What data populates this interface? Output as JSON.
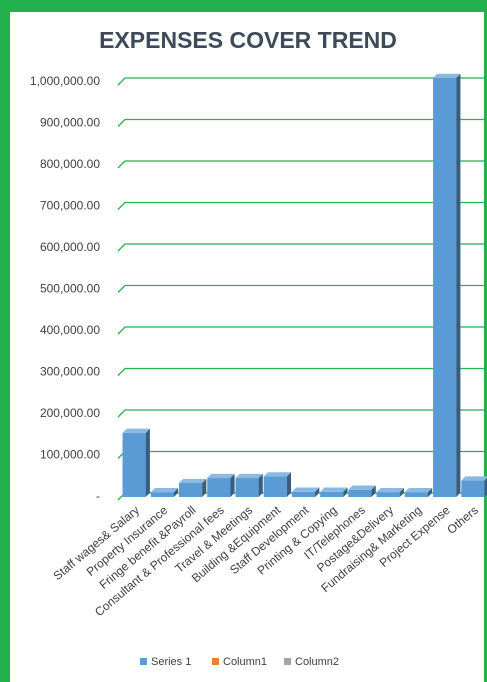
{
  "chart_data": {
    "type": "bar3d",
    "title": "EXPENSES COVER TREND",
    "categories": [
      "Staff wages& Salary",
      "Property Insurance",
      "Fringe benefit &Payroll",
      "Consultant & Professional fees",
      "Travel & Meetings",
      "Building &Equipment",
      "Staff Development",
      "Printing & Copying",
      "IT/Telephones",
      "Postage&Delivery",
      "Fundraising& Marketing",
      "Project Expense",
      "Others"
    ],
    "series": [
      {
        "name": "Series 1",
        "color": "#5b9bd5",
        "values": [
          145000,
          2000,
          24000,
          36000,
          36000,
          40000,
          3000,
          3000,
          8000,
          2000,
          2000,
          1000000,
          30000
        ]
      },
      {
        "name": "Column1",
        "color": "#ed7d31",
        "values": [
          null,
          null,
          null,
          null,
          null,
          null,
          null,
          null,
          null,
          null,
          null,
          null,
          null
        ]
      },
      {
        "name": "Column2",
        "color": "#a5a5a5",
        "values": [
          null,
          null,
          null,
          null,
          null,
          null,
          null,
          null,
          null,
          null,
          null,
          null,
          null
        ]
      }
    ],
    "ylim": [
      0,
      1000000
    ],
    "yticks": [
      {
        "value": 0,
        "label": "-"
      },
      {
        "value": 100000,
        "label": "100,000.00"
      },
      {
        "value": 200000,
        "label": "200,000.00"
      },
      {
        "value": 300000,
        "label": "300,000.00"
      },
      {
        "value": 400000,
        "label": "400,000.00"
      },
      {
        "value": 500000,
        "label": "500,000.00"
      },
      {
        "value": 600000,
        "label": "600,000.00"
      },
      {
        "value": 700000,
        "label": "700,000.00"
      },
      {
        "value": 800000,
        "label": "800,000.00"
      },
      {
        "value": 900000,
        "label": "900,000.00"
      },
      {
        "value": 1000000,
        "label": "1,000,000.00"
      }
    ],
    "grid": true,
    "grid_color": "#22b14c",
    "legend": "bottom"
  }
}
